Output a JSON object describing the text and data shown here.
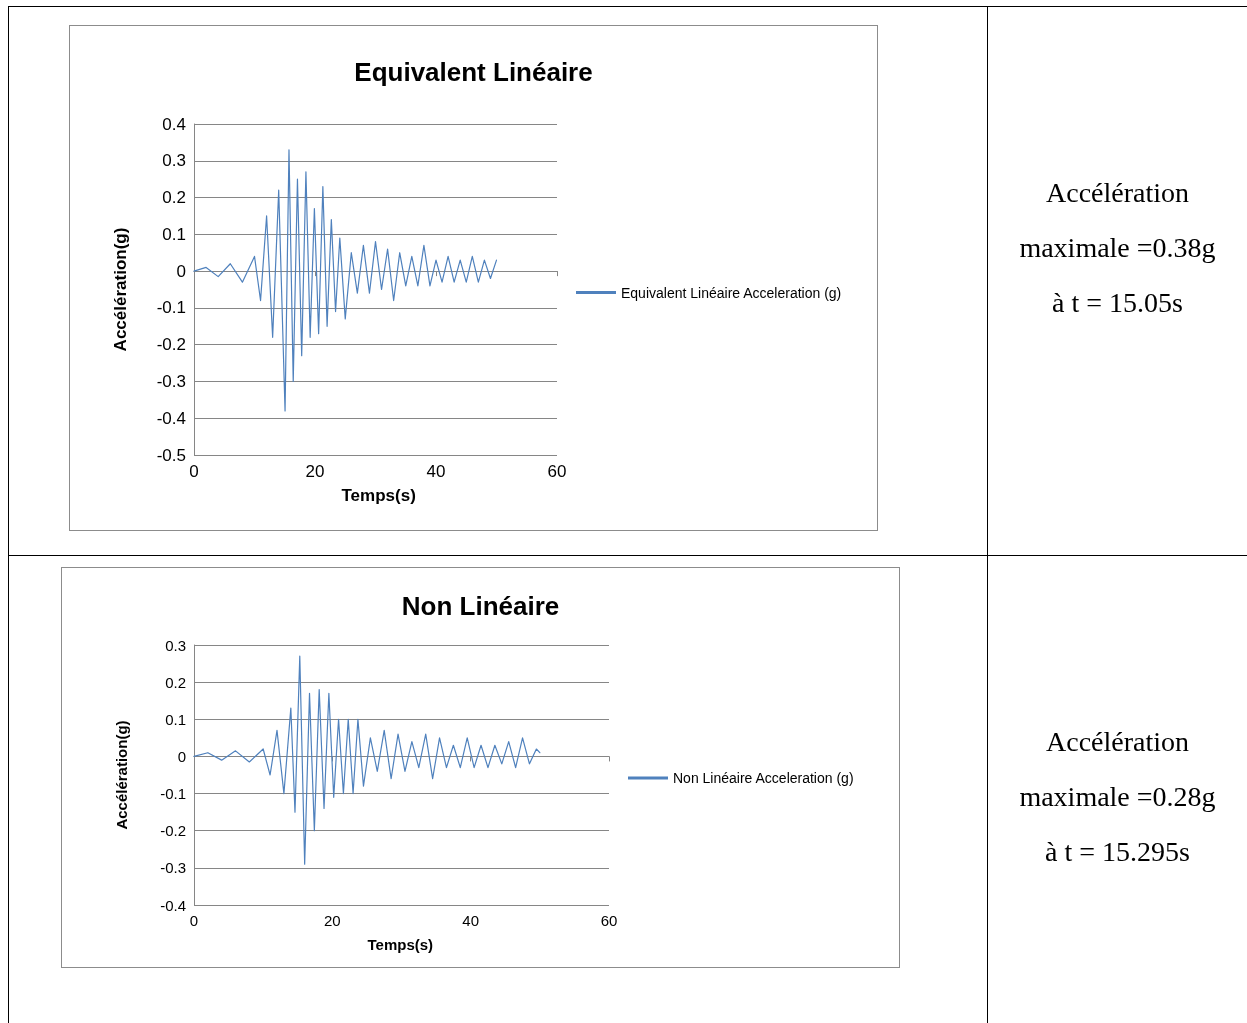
{
  "chart_data": [
    {
      "type": "line",
      "title": "Equivalent Linéaire",
      "xlabel": "Temps(s)",
      "ylabel": "Accélération(g)",
      "xlim": [
        0,
        60
      ],
      "xticks": [
        0,
        20,
        40,
        60
      ],
      "ylim": [
        -0.5,
        0.4
      ],
      "yticks": [
        -0.5,
        -0.4,
        -0.3,
        -0.2,
        -0.1,
        0,
        0.1,
        0.2,
        0.3,
        0.4
      ],
      "grid": "y",
      "legend": "right",
      "marker": "none",
      "line_style": "solid",
      "series": [
        {
          "name": "Equivalent Linéaire Acceleration (g)",
          "color": "#4f81bd",
          "x": [
            0,
            2,
            4,
            6,
            8,
            10,
            11,
            12,
            13,
            14,
            15.05,
            15.7,
            16.4,
            17.1,
            17.8,
            18.5,
            19.2,
            19.9,
            20.6,
            21.3,
            22,
            22.7,
            23.4,
            24.1,
            25,
            26,
            27,
            28,
            29,
            30,
            31,
            32,
            33,
            34,
            35,
            36,
            37,
            38,
            39,
            40,
            41,
            42,
            43,
            44,
            45,
            46,
            47,
            48,
            49,
            50
          ],
          "values": [
            0,
            0.01,
            -0.015,
            0.02,
            -0.03,
            0.04,
            -0.08,
            0.15,
            -0.18,
            0.22,
            -0.38,
            0.33,
            -0.3,
            0.25,
            -0.23,
            0.27,
            -0.18,
            0.17,
            -0.17,
            0.23,
            -0.15,
            0.14,
            -0.11,
            0.09,
            -0.13,
            0.05,
            -0.06,
            0.07,
            -0.06,
            0.08,
            -0.05,
            0.06,
            -0.08,
            0.05,
            -0.04,
            0.04,
            -0.04,
            0.07,
            -0.04,
            0.03,
            -0.03,
            0.04,
            -0.03,
            0.03,
            -0.03,
            0.04,
            -0.03,
            0.03,
            -0.02,
            0.03
          ]
        }
      ]
    },
    {
      "type": "other",
      "annotations": [
        "Accélération",
        "maximale =0.38g",
        "à t = 15.05s"
      ]
    },
    {
      "type": "line",
      "title": "Non Linéaire",
      "xlabel": "Temps(s)",
      "ylabel": "Accélération(g)",
      "xlim": [
        0,
        60
      ],
      "xticks": [
        0,
        20,
        40,
        60
      ],
      "ylim": [
        -0.4,
        0.3
      ],
      "yticks": [
        -0.4,
        -0.3,
        -0.2,
        -0.1,
        0,
        0.1,
        0.2,
        0.3
      ],
      "grid": "y",
      "legend": "right",
      "marker": "none",
      "line_style": "solid",
      "series": [
        {
          "name": "Non Linéaire Acceleration (g)",
          "color": "#4f81bd",
          "x": [
            0,
            2,
            4,
            6,
            8,
            10,
            11,
            12,
            13,
            14,
            14.6,
            15.295,
            16,
            16.7,
            17.4,
            18.1,
            18.8,
            19.5,
            20.2,
            20.9,
            21.6,
            22.3,
            23,
            23.7,
            24.5,
            25.5,
            26.5,
            27.5,
            28.5,
            29.5,
            30.5,
            31.5,
            32.5,
            33.5,
            34.5,
            35.5,
            36.5,
            37.5,
            38.5,
            39.5,
            40.5,
            41.5,
            42.5,
            43.5,
            44.5,
            45.5,
            46.5,
            47.5,
            48.5,
            49.5,
            50
          ],
          "values": [
            0,
            0.01,
            -0.01,
            0.015,
            -0.015,
            0.02,
            -0.05,
            0.07,
            -0.1,
            0.13,
            -0.15,
            0.27,
            -0.29,
            0.17,
            -0.2,
            0.18,
            -0.14,
            0.17,
            -0.11,
            0.1,
            -0.1,
            0.1,
            -0.1,
            0.1,
            -0.08,
            0.05,
            -0.04,
            0.07,
            -0.06,
            0.06,
            -0.04,
            0.04,
            -0.03,
            0.06,
            -0.06,
            0.05,
            -0.03,
            0.03,
            -0.03,
            0.05,
            -0.03,
            0.03,
            -0.03,
            0.03,
            -0.02,
            0.04,
            -0.03,
            0.05,
            -0.02,
            0.02,
            0.01
          ]
        }
      ]
    },
    {
      "type": "other",
      "annotations": [
        "Accélération",
        "maximale =0.28g",
        "à t = 15.295s"
      ]
    }
  ]
}
